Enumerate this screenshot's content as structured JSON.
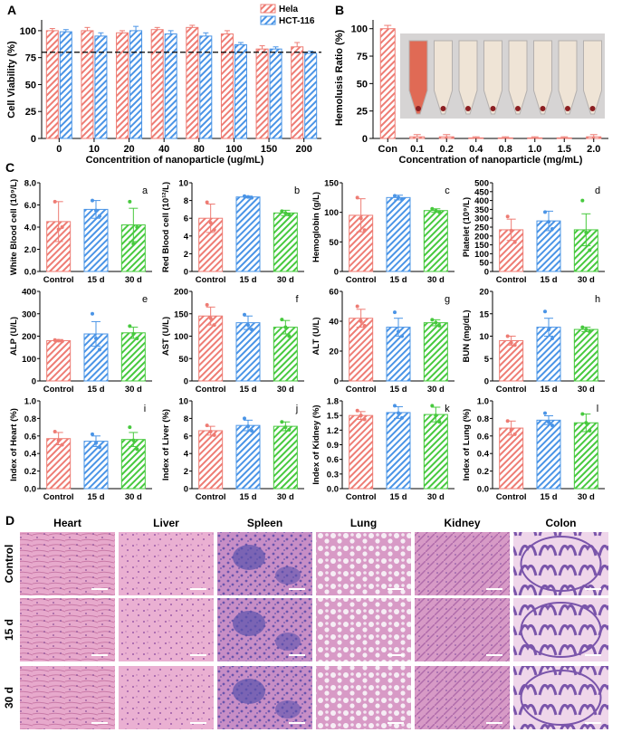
{
  "colors": {
    "red": "#ee7c74",
    "blue": "#4a94e6",
    "green": "#47c93e",
    "control": "#ee7c74",
    "d15": "#4a94e6",
    "d30": "#47c93e"
  },
  "panels": {
    "A": {
      "letter": "A",
      "ylabel": "Cell Viability (%)",
      "xlabel": "Concentrition of nanoparticle (ug/mL)"
    },
    "B": {
      "letter": "B",
      "ylabel": "Hemolusis Ratio (%)",
      "xlabel": "Concentration of nanoparticle (mg/mL)"
    },
    "C": {
      "letter": "C"
    },
    "D": {
      "letter": "D"
    }
  },
  "chart_data": [
    {
      "id": "A",
      "type": "bar",
      "title": "",
      "xlabel": "Concentrition of nanoparticle (ug/mL)",
      "ylabel": "Cell Viability (%)",
      "categories": [
        "0",
        "10",
        "20",
        "40",
        "80",
        "100",
        "150",
        "200"
      ],
      "yticks": [
        "0",
        "25",
        "50",
        "75",
        "100"
      ],
      "ylim": [
        0,
        110
      ],
      "reference_line": 80,
      "legend": "top-right",
      "series": [
        {
          "name": "Hela",
          "values": [
            100,
            100,
            98,
            101,
            103,
            97,
            83,
            85
          ],
          "errors": [
            2,
            3,
            2,
            2,
            2,
            3,
            3,
            4
          ]
        },
        {
          "name": "HCT-116",
          "values": [
            99,
            95,
            100,
            97,
            95,
            87,
            83,
            79
          ],
          "errors": [
            2,
            3,
            4,
            3,
            3,
            2,
            2,
            2
          ]
        }
      ]
    },
    {
      "id": "B",
      "type": "bar",
      "title": "",
      "xlabel": "Concentration of nanoparticle (mg/mL)",
      "ylabel": "Hemolusis Ratio (%)",
      "categories": [
        "Con",
        "0.1",
        "0.2",
        "0.4",
        "0.8",
        "1.0",
        "1.5",
        "2.0"
      ],
      "yticks": [
        "0",
        "25",
        "50",
        "75",
        "100"
      ],
      "ylim": [
        0,
        108
      ],
      "series": [
        {
          "values": [
            100,
            1.5,
            1.5,
            0.5,
            0.5,
            0.5,
            0.5,
            1.5
          ],
          "errors": [
            3,
            2,
            2,
            1,
            1,
            1,
            1,
            2
          ]
        }
      ]
    },
    {
      "id": "a",
      "letter": "a",
      "type": "bar",
      "ylabel": "White Blood cell (10⁹/L)",
      "categories": [
        "Control",
        "15 d",
        "30 d"
      ],
      "yticks": [
        "0.0",
        "2.0",
        "4.0",
        "6.0",
        "8.0"
      ],
      "ylim": [
        0,
        8
      ],
      "values": [
        4.5,
        5.6,
        4.2
      ],
      "errors": [
        1.8,
        0.8,
        1.5
      ],
      "points": [
        [
          6.3,
          3.8,
          4.0
        ],
        [
          6.4,
          5.5,
          5.0
        ],
        [
          6.3,
          2.5,
          4.0
        ]
      ]
    },
    {
      "id": "b",
      "letter": "b",
      "type": "bar",
      "ylabel": "Red Blood cell (10¹²/L)",
      "categories": [
        "Control",
        "15 d",
        "30 d"
      ],
      "yticks": [
        "0",
        "2",
        "4",
        "6",
        "8",
        "10"
      ],
      "ylim": [
        0,
        10
      ],
      "values": [
        6.0,
        8.4,
        6.6
      ],
      "errors": [
        1.6,
        0.1,
        0.3
      ],
      "points": [
        [
          7.8,
          5.5,
          4.7
        ],
        [
          8.5,
          8.4,
          8.3
        ],
        [
          6.8,
          6.6,
          6.4
        ]
      ]
    },
    {
      "id": "c",
      "letter": "c",
      "type": "bar",
      "ylabel": "Hemoglobin (g/L)",
      "categories": [
        "Control",
        "15 d",
        "30 d"
      ],
      "yticks": [
        "0",
        "50",
        "100",
        "150"
      ],
      "ylim": [
        0,
        150
      ],
      "values": [
        95,
        125,
        103
      ],
      "errors": [
        28,
        4,
        3
      ],
      "points": [
        [
          125,
          90,
          70
        ],
        [
          128,
          125,
          122
        ],
        [
          106,
          103,
          100
        ]
      ]
    },
    {
      "id": "d",
      "letter": "d",
      "type": "bar",
      "ylabel": "Platelet (10⁹/L)",
      "categories": [
        "Control",
        "15 d",
        "30 d"
      ],
      "yticks": [
        "0",
        "50",
        "100",
        "150",
        "200",
        "250",
        "300",
        "350",
        "400",
        "450",
        "500"
      ],
      "ylim": [
        0,
        500
      ],
      "values": [
        235,
        285,
        235
      ],
      "errors": [
        60,
        55,
        90
      ],
      "points": [
        [
          310,
          230,
          165
        ],
        [
          335,
          280,
          240
        ],
        [
          400,
          220,
          120
        ]
      ]
    },
    {
      "id": "e",
      "letter": "e",
      "type": "bar",
      "ylabel": "ALP (U/L)",
      "categories": [
        "Control",
        "15 d",
        "30 d"
      ],
      "yticks": [
        "0",
        "100",
        "200",
        "300",
        "400"
      ],
      "ylim": [
        0,
        400
      ],
      "values": [
        180,
        210,
        215
      ],
      "errors": [
        5,
        55,
        25
      ],
      "points": [
        [
          183,
          180,
          177
        ],
        [
          300,
          190,
          140
        ],
        [
          245,
          210,
          190
        ]
      ]
    },
    {
      "id": "f",
      "letter": "f",
      "type": "bar",
      "ylabel": "AST (U/L)",
      "categories": [
        "Control",
        "15 d",
        "30 d"
      ],
      "yticks": [
        "0",
        "50",
        "100",
        "150",
        "200"
      ],
      "ylim": [
        0,
        200
      ],
      "values": [
        145,
        130,
        120
      ],
      "errors": [
        20,
        15,
        15
      ],
      "points": [
        [
          170,
          140,
          125
        ],
        [
          148,
          125,
          115
        ],
        [
          137,
          120,
          100
        ]
      ]
    },
    {
      "id": "g",
      "letter": "g",
      "type": "bar",
      "ylabel": "ALT (U/L)",
      "categories": [
        "Control",
        "15 d",
        "30 d"
      ],
      "yticks": [
        "0",
        "20",
        "40",
        "60"
      ],
      "ylim": [
        0,
        60
      ],
      "values": [
        42,
        36,
        39
      ],
      "errors": [
        6,
        6,
        2
      ],
      "points": [
        [
          50,
          40,
          37
        ],
        [
          46,
          33,
          30
        ],
        [
          41,
          39,
          37
        ]
      ]
    },
    {
      "id": "h",
      "letter": "h",
      "type": "bar",
      "ylabel": "BUN (mg/dL)",
      "categories": [
        "Control",
        "15 d",
        "30 d"
      ],
      "yticks": [
        "0",
        "5",
        "10",
        "15",
        "20"
      ],
      "ylim": [
        0,
        20
      ],
      "values": [
        9,
        12,
        11.5
      ],
      "errors": [
        1,
        2,
        0.5
      ],
      "points": [
        [
          10,
          8.5,
          8
        ],
        [
          15.5,
          11.5,
          9.5
        ],
        [
          12,
          11.5,
          11
        ]
      ]
    },
    {
      "id": "i",
      "letter": "i",
      "type": "bar",
      "ylabel": "Index of Heart (%)",
      "categories": [
        "Control",
        "15 d",
        "30 d"
      ],
      "yticks": [
        "0.0",
        "0.2",
        "0.4",
        "0.6",
        "0.8",
        "1.0"
      ],
      "ylim": [
        0,
        1
      ],
      "values": [
        0.57,
        0.54,
        0.56
      ],
      "errors": [
        0.07,
        0.06,
        0.08
      ],
      "points": [
        [
          0.65,
          0.55,
          0.5
        ],
        [
          0.62,
          0.52,
          0.47
        ],
        [
          0.7,
          0.55,
          0.45
        ]
      ]
    },
    {
      "id": "j",
      "letter": "j",
      "type": "bar",
      "ylabel": "Index of Liver (%)",
      "categories": [
        "Control",
        "15 d",
        "30 d"
      ],
      "yticks": [
        "0",
        "2",
        "4",
        "6",
        "8",
        "10"
      ],
      "ylim": [
        0,
        10
      ],
      "values": [
        6.6,
        7.2,
        7.1
      ],
      "errors": [
        0.5,
        0.6,
        0.5
      ],
      "points": [
        [
          7.2,
          6.5,
          6.1
        ],
        [
          8.0,
          7.1,
          6.6
        ],
        [
          7.6,
          7.0,
          6.7
        ]
      ]
    },
    {
      "id": "k",
      "letter": "k",
      "type": "bar",
      "ylabel": "Index of Kidney (%)",
      "categories": [
        "Control",
        "15 d",
        "30 d"
      ],
      "yticks": [
        "0.0",
        "0.3",
        "0.6",
        "0.9",
        "1.2",
        "1.5",
        "1.8"
      ],
      "ylim": [
        0,
        1.8
      ],
      "values": [
        1.5,
        1.56,
        1.52
      ],
      "errors": [
        0.08,
        0.12,
        0.15
      ],
      "points": [
        [
          1.6,
          1.5,
          1.42
        ],
        [
          1.7,
          1.55,
          1.45
        ],
        [
          1.7,
          1.5,
          1.37
        ]
      ]
    },
    {
      "id": "l",
      "letter": "l",
      "type": "bar",
      "ylabel": "Index of Lung (%)",
      "categories": [
        "Control",
        "15 d",
        "30 d"
      ],
      "yticks": [
        "0.0",
        "0.2",
        "0.4",
        "0.6",
        "0.8",
        "1.0"
      ],
      "ylim": [
        0,
        1
      ],
      "values": [
        0.69,
        0.78,
        0.75
      ],
      "errors": [
        0.08,
        0.05,
        0.1
      ],
      "points": [
        [
          0.77,
          0.67,
          0.62
        ],
        [
          0.86,
          0.76,
          0.72
        ],
        [
          0.85,
          0.75,
          0.66
        ]
      ]
    }
  ],
  "histology": {
    "columns": [
      "Heart",
      "Liver",
      "Spleen",
      "Lung",
      "Kidney",
      "Colon"
    ],
    "rows": [
      "Control",
      "15 d",
      "30 d"
    ]
  }
}
